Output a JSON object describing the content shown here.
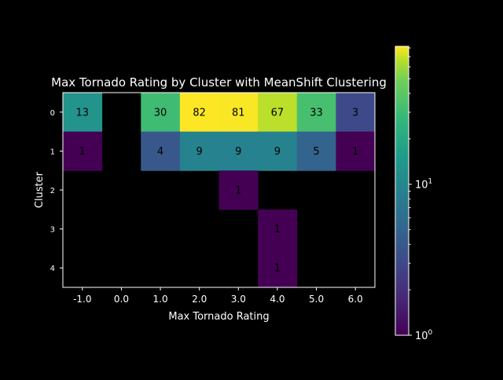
{
  "chart_data": {
    "type": "heatmap",
    "title": "Max Tornado Rating by Cluster with MeanShift Clustering",
    "xlabel": "Max Tornado Rating",
    "ylabel": "Cluster",
    "x_categories": [
      "-1.0",
      "0.0",
      "1.0",
      "2.0",
      "3.0",
      "4.0",
      "5.0",
      "6.0"
    ],
    "y_categories": [
      "0",
      "1",
      "2",
      "3",
      "4"
    ],
    "values": [
      [
        13,
        null,
        30,
        82,
        81,
        67,
        33,
        3
      ],
      [
        1,
        null,
        4,
        9,
        9,
        9,
        5,
        1
      ],
      [
        null,
        null,
        null,
        null,
        1,
        null,
        null,
        null
      ],
      [
        null,
        null,
        null,
        null,
        null,
        1,
        null,
        null
      ],
      [
        null,
        null,
        null,
        null,
        null,
        1,
        null,
        null
      ]
    ],
    "color_scale": "log",
    "colormap": "viridis",
    "colorbar_range": [
      1,
      82
    ],
    "colorbar_ticks": [
      "10^0",
      "10^1"
    ],
    "background": "#000000",
    "text_color": "#ffffff",
    "annotation_color": "#000000"
  }
}
